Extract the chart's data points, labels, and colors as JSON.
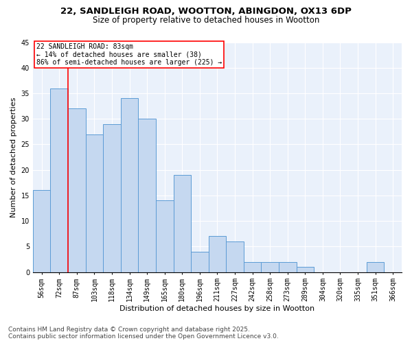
{
  "title_line1": "22, SANDLEIGH ROAD, WOOTTON, ABINGDON, OX13 6DP",
  "title_line2": "Size of property relative to detached houses in Wootton",
  "xlabel": "Distribution of detached houses by size in Wootton",
  "ylabel": "Number of detached properties",
  "categories": [
    "56sqm",
    "72sqm",
    "87sqm",
    "103sqm",
    "118sqm",
    "134sqm",
    "149sqm",
    "165sqm",
    "180sqm",
    "196sqm",
    "211sqm",
    "227sqm",
    "242sqm",
    "258sqm",
    "273sqm",
    "289sqm",
    "304sqm",
    "320sqm",
    "335sqm",
    "351sqm",
    "366sqm"
  ],
  "values": [
    16,
    36,
    32,
    27,
    29,
    34,
    30,
    14,
    19,
    4,
    7,
    6,
    2,
    2,
    2,
    1,
    0,
    0,
    0,
    2,
    0
  ],
  "bar_color": "#c5d8f0",
  "bar_edge_color": "#5b9bd5",
  "red_line_x": 2.0,
  "annotation_text": "22 SANDLEIGH ROAD: 83sqm\n← 14% of detached houses are smaller (38)\n86% of semi-detached houses are larger (225) →",
  "annotation_box_color": "white",
  "annotation_box_edge_color": "red",
  "ylim": [
    0,
    45
  ],
  "yticks": [
    0,
    5,
    10,
    15,
    20,
    25,
    30,
    35,
    40,
    45
  ],
  "background_color": "#eaf1fb",
  "grid_color": "white",
  "footer_line1": "Contains HM Land Registry data © Crown copyright and database right 2025.",
  "footer_line2": "Contains public sector information licensed under the Open Government Licence v3.0.",
  "title_fontsize": 9.5,
  "subtitle_fontsize": 8.5,
  "axis_label_fontsize": 8,
  "tick_fontsize": 7,
  "annotation_fontsize": 7,
  "footer_fontsize": 6.5
}
